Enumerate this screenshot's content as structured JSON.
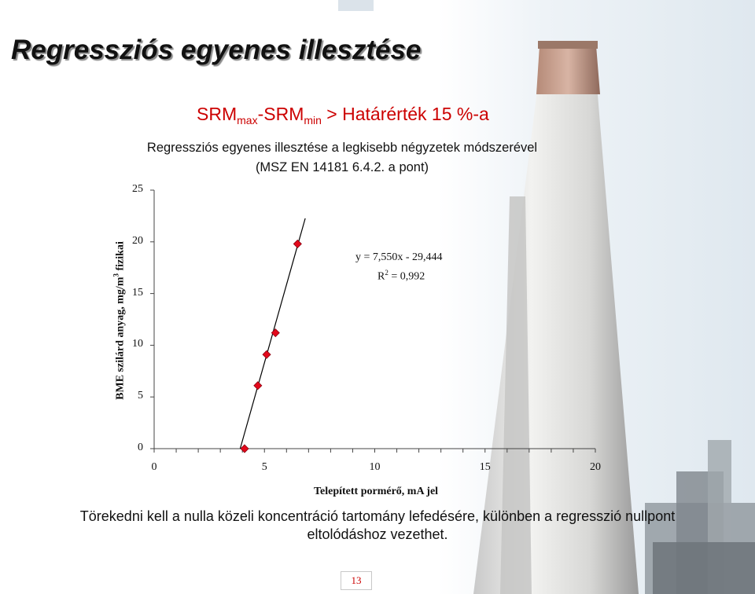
{
  "title": "Regressziós egyenes illesztése",
  "heading": {
    "srm1": "SRM",
    "max": "max",
    "dash": "-SRM",
    "min": "min",
    "rest": " > Határérték 15 %-a"
  },
  "subtitle": {
    "line1": "Regressziós egyenes illesztése a legkisebb négyzetek módszerével",
    "line2": "(MSZ EN 14181 6.4.2. a pont)"
  },
  "chart_data": {
    "type": "scatter",
    "xlabel": "Telepített pormérő, mA jel",
    "ylabel_main": "BME szilárd anyag, mg/m",
    "ylabel_sup": "3",
    "ylabel_tail": " fizikai",
    "xlim": [
      0,
      20
    ],
    "ylim": [
      0,
      25
    ],
    "x_ticks": [
      "0",
      "5",
      "10",
      "15",
      "20"
    ],
    "y_ticks": [
      "0",
      "5",
      "10",
      "15",
      "20",
      "25"
    ],
    "points": [
      {
        "x": 4.1,
        "y": 0.0
      },
      {
        "x": 4.7,
        "y": 6.1
      },
      {
        "x": 5.1,
        "y": 9.1
      },
      {
        "x": 5.5,
        "y": 11.2
      },
      {
        "x": 6.5,
        "y": 19.8
      }
    ],
    "trendline": {
      "slope": 7.55,
      "intercept": -29.444,
      "x_range": [
        3.9,
        6.85
      ]
    },
    "equation": "y = 7,550x - 29,444",
    "r2_prefix": "R",
    "r2_sup": "2",
    "r2_value": " = 0,992",
    "marker_color": "#e3081b"
  },
  "note": "Törekedni kell a nulla közeli koncentráció tartomány lefedésére, különben a regresszió nullpont eltolódáshoz vezethet.",
  "page_number": "13"
}
